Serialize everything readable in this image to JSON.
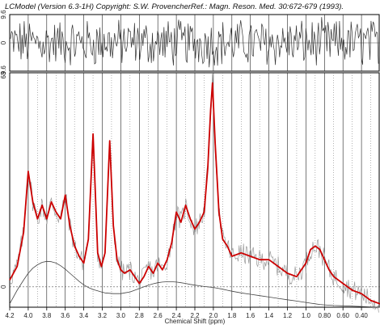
{
  "header": {
    "left": "LCModel (Version 6.3-1H) Copyright: S.W. Provencher.",
    "right": "Ref.: Magn. Reson. Med. 30:672-679 (1993)."
  },
  "chart_data": [
    {
      "type": "line",
      "name": "residual",
      "x_range": [
        4.2,
        0.2
      ],
      "ylim": [
        -9.6,
        9.6
      ],
      "yticks": [
        "9.6",
        "0",
        "-9.6"
      ],
      "note_values": "approximate noise band around 0, amplitude ~±7"
    },
    {
      "type": "line",
      "x": [
        4.2,
        4.12,
        4.05,
        4.0,
        3.95,
        3.9,
        3.85,
        3.8,
        3.75,
        3.7,
        3.65,
        3.6,
        3.55,
        3.5,
        3.45,
        3.4,
        3.35,
        3.3,
        3.25,
        3.21,
        3.17,
        3.12,
        3.08,
        3.04,
        3.0,
        2.96,
        2.9,
        2.85,
        2.8,
        2.75,
        2.7,
        2.65,
        2.6,
        2.55,
        2.5,
        2.45,
        2.4,
        2.35,
        2.3,
        2.25,
        2.2,
        2.15,
        2.1,
        2.06,
        2.03,
        2.01,
        1.98,
        1.94,
        1.9,
        1.85,
        1.8,
        1.7,
        1.6,
        1.5,
        1.4,
        1.3,
        1.2,
        1.1,
        1.0,
        0.95,
        0.9,
        0.85,
        0.8,
        0.75,
        0.7,
        0.6,
        0.5,
        0.4,
        0.3,
        0.2
      ],
      "xticks": [
        "4.2",
        "4.0",
        "3.8",
        "3.6",
        "3.4",
        "3.2",
        "3.0",
        "2.8",
        "2.6",
        "2.4",
        "2.2",
        "2.0",
        "1.8",
        "1.6",
        "1.4",
        "1.2",
        "1.0",
        "0.80",
        "0.60",
        "0.40"
      ],
      "xlabel": "Chemical Shift (ppm)",
      "ylim": [
        -6,
        63
      ],
      "yticks": [
        "63",
        "0"
      ],
      "series": [
        {
          "values": [
            2,
            6,
            16,
            34,
            25,
            20,
            24,
            20,
            25,
            22,
            20,
            27,
            18,
            12,
            9,
            7,
            14,
            45,
            10,
            6,
            10,
            43,
            18,
            8,
            5,
            4,
            5,
            3,
            1,
            3,
            6,
            4,
            7,
            5,
            8,
            13,
            22,
            19,
            24,
            20,
            17,
            19,
            22,
            35,
            52,
            60,
            42,
            22,
            14,
            12,
            9,
            10,
            9,
            8,
            8,
            6,
            4,
            3,
            7,
            11,
            12,
            11,
            8,
            5,
            3,
            1,
            -1,
            -2,
            -4,
            -5
          ],
          "color": "#cc0000"
        },
        {
          "values": [
            -5,
            -1,
            2,
            4,
            5.5,
            6.5,
            7.2,
            7.5,
            7.4,
            7.0,
            6.2,
            5.2,
            4.0,
            2.8,
            1.6,
            0.6,
            -0.2,
            -0.8,
            -1.2,
            -1.5,
            -1.8,
            -1.9,
            -2.0,
            -2.0,
            -2.0,
            -1.8,
            -1.5,
            -1.0,
            -0.5,
            0,
            0.5,
            0.9,
            1.2,
            1.4,
            1.5,
            1.5,
            1.4,
            1.2,
            1.0,
            0.7,
            0.5,
            0.3,
            0.1,
            0.0,
            -0.1,
            -0.2,
            -0.3,
            -0.5,
            -0.7,
            -1.0,
            -1.3,
            -1.8,
            -2.2,
            -2.6,
            -3.0,
            -3.4,
            -3.8,
            -4.2,
            -4.6,
            -4.8,
            -5.0,
            -5.2,
            -5.3,
            -5.4,
            -5.5,
            -5.6,
            -5.7,
            -5.8,
            -5.9,
            -6.0
          ],
          "color": "#444444"
        }
      ],
      "grid_solid_ppm": [
        4.0,
        3.8,
        3.6,
        3.4,
        3.2,
        3.0,
        2.8,
        2.6,
        2.4,
        2.2,
        2.0,
        1.8,
        1.6,
        1.4,
        1.2,
        1.0,
        0.8,
        0.6,
        0.4
      ],
      "grid": true
    }
  ]
}
